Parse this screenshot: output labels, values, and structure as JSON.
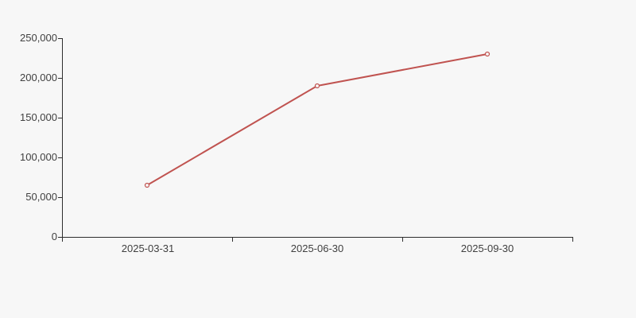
{
  "chart": {
    "title": "",
    "colors": {
      "background": "#f7f7f7",
      "line": "#c05350",
      "marker_fill": "#f7f7f7",
      "axis": "#2e2e2e",
      "text": "#404040"
    },
    "chart_data": {
      "type": "line",
      "categories": [
        "2025-03-31",
        "2025-06-30",
        "2025-09-30"
      ],
      "series": [
        {
          "name": "value",
          "values": [
            65000,
            190000,
            230000
          ]
        }
      ],
      "y_ticks": [
        0,
        50000,
        100000,
        150000,
        200000,
        250000
      ],
      "y_tick_labels": [
        "0",
        "50,000",
        "100,000",
        "150,000",
        "200,000",
        "250,000"
      ],
      "ylim": [
        0,
        250000
      ],
      "xlabel": "",
      "ylabel": "",
      "grid": false,
      "legend": "none",
      "marker": "open-circle"
    }
  }
}
